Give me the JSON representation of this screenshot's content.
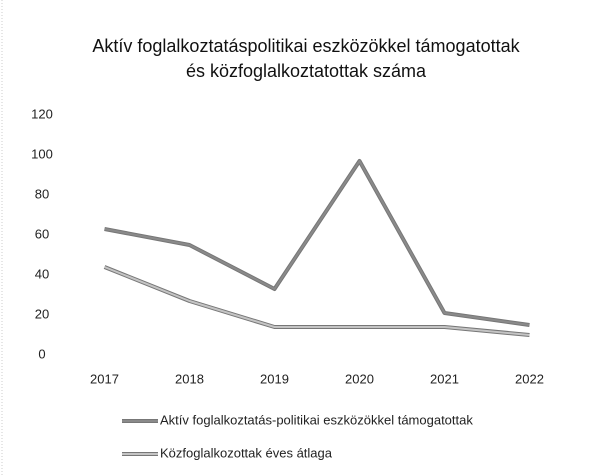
{
  "chart_data": {
    "type": "line",
    "title": [
      "Aktív foglalkoztatáspolitikai eszközökkel támogatottak",
      "és közfoglalkoztatottak száma"
    ],
    "categories": [
      "2017",
      "2018",
      "2019",
      "2020",
      "2021",
      "2022"
    ],
    "series": [
      {
        "name": "Aktív foglalkoztatás-politikai eszközökkel támogatottak",
        "color": "#8a8a8a",
        "values": [
          63,
          55,
          33,
          97,
          21,
          15
        ]
      },
      {
        "name": "Közfoglalkozottak éves átlaga",
        "color": "#c4c4c4",
        "values": [
          44,
          27,
          14,
          14,
          14,
          10
        ]
      }
    ],
    "ylim": [
      0,
      120
    ],
    "yticks": [
      0,
      20,
      40,
      60,
      80,
      100,
      120
    ],
    "grid": false,
    "legend": "bottom"
  }
}
